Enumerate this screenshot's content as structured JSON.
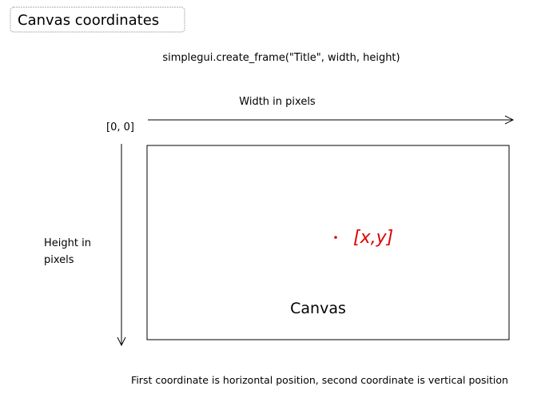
{
  "header": {
    "title": "Canvas coordinates"
  },
  "code": "simplegui.create_frame(\"Title\", width, height)",
  "width_label": "Width in pixels",
  "origin_label": "[0, 0]",
  "height_label": [
    "Height in",
    "pixels"
  ],
  "point_label": "[x,y]",
  "canvas_label": "Canvas",
  "caption": "First coordinate is horizontal position, second coordinate is vertical position"
}
